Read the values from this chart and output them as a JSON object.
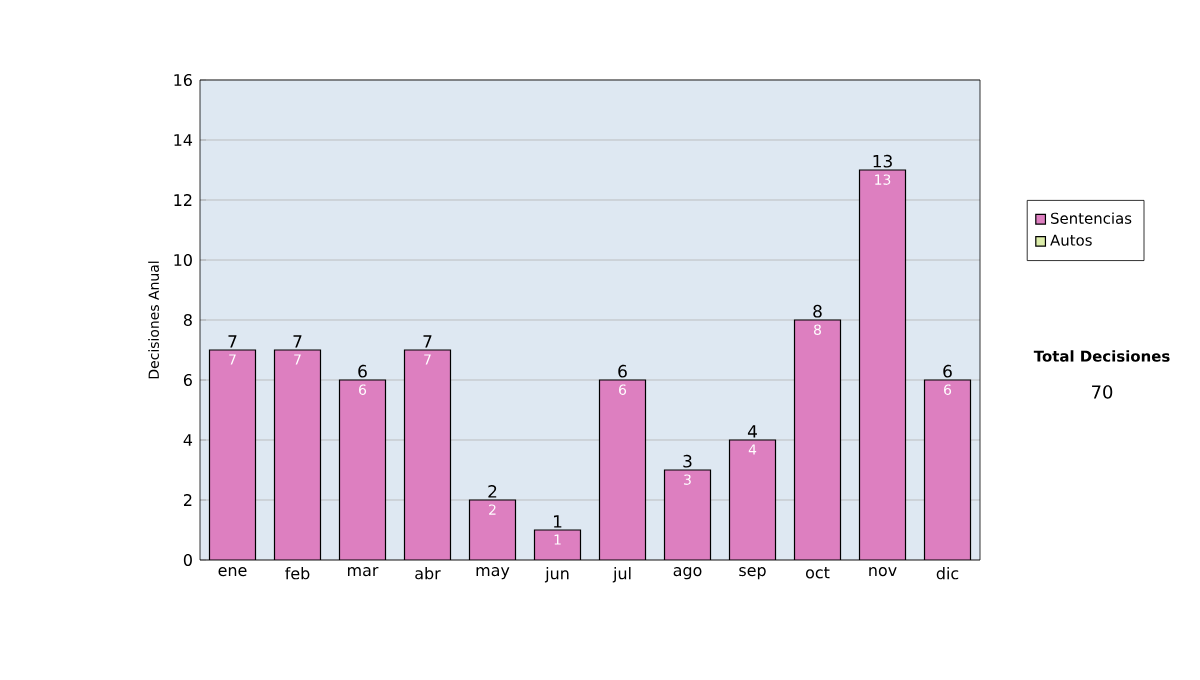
{
  "chart_data": {
    "type": "bar",
    "stacked": true,
    "ylabel": "Decisiones Anual",
    "categories": [
      "ene",
      "feb",
      "mar",
      "abr",
      "may",
      "jun",
      "jul",
      "ago",
      "sep",
      "oct",
      "nov",
      "dic"
    ],
    "series": [
      {
        "name": "Sentencias",
        "color": "#dd7fc0",
        "values": [
          7,
          7,
          6,
          7,
          2,
          1,
          6,
          3,
          4,
          8,
          13,
          6
        ],
        "value_labels": [
          "7",
          "7",
          "6",
          "7",
          "2",
          "1",
          "6",
          "3",
          "4",
          "8",
          "13",
          "6"
        ]
      },
      {
        "name": "Autos",
        "color": "#dcedaa",
        "values": [
          0,
          0,
          0,
          0,
          0,
          0,
          0,
          0,
          0,
          0,
          0,
          0
        ]
      }
    ],
    "totals": [
      "7",
      "7",
      "6",
      "7",
      "2",
      "1",
      "6",
      "3",
      "4",
      "8",
      "13",
      "6"
    ],
    "ylim": [
      0,
      16
    ],
    "yticks": [
      0,
      2,
      4,
      6,
      8,
      10,
      12,
      14,
      16
    ],
    "grid": "y",
    "legend": "right",
    "annotations": [
      "Total Decisiones",
      "70"
    ]
  }
}
